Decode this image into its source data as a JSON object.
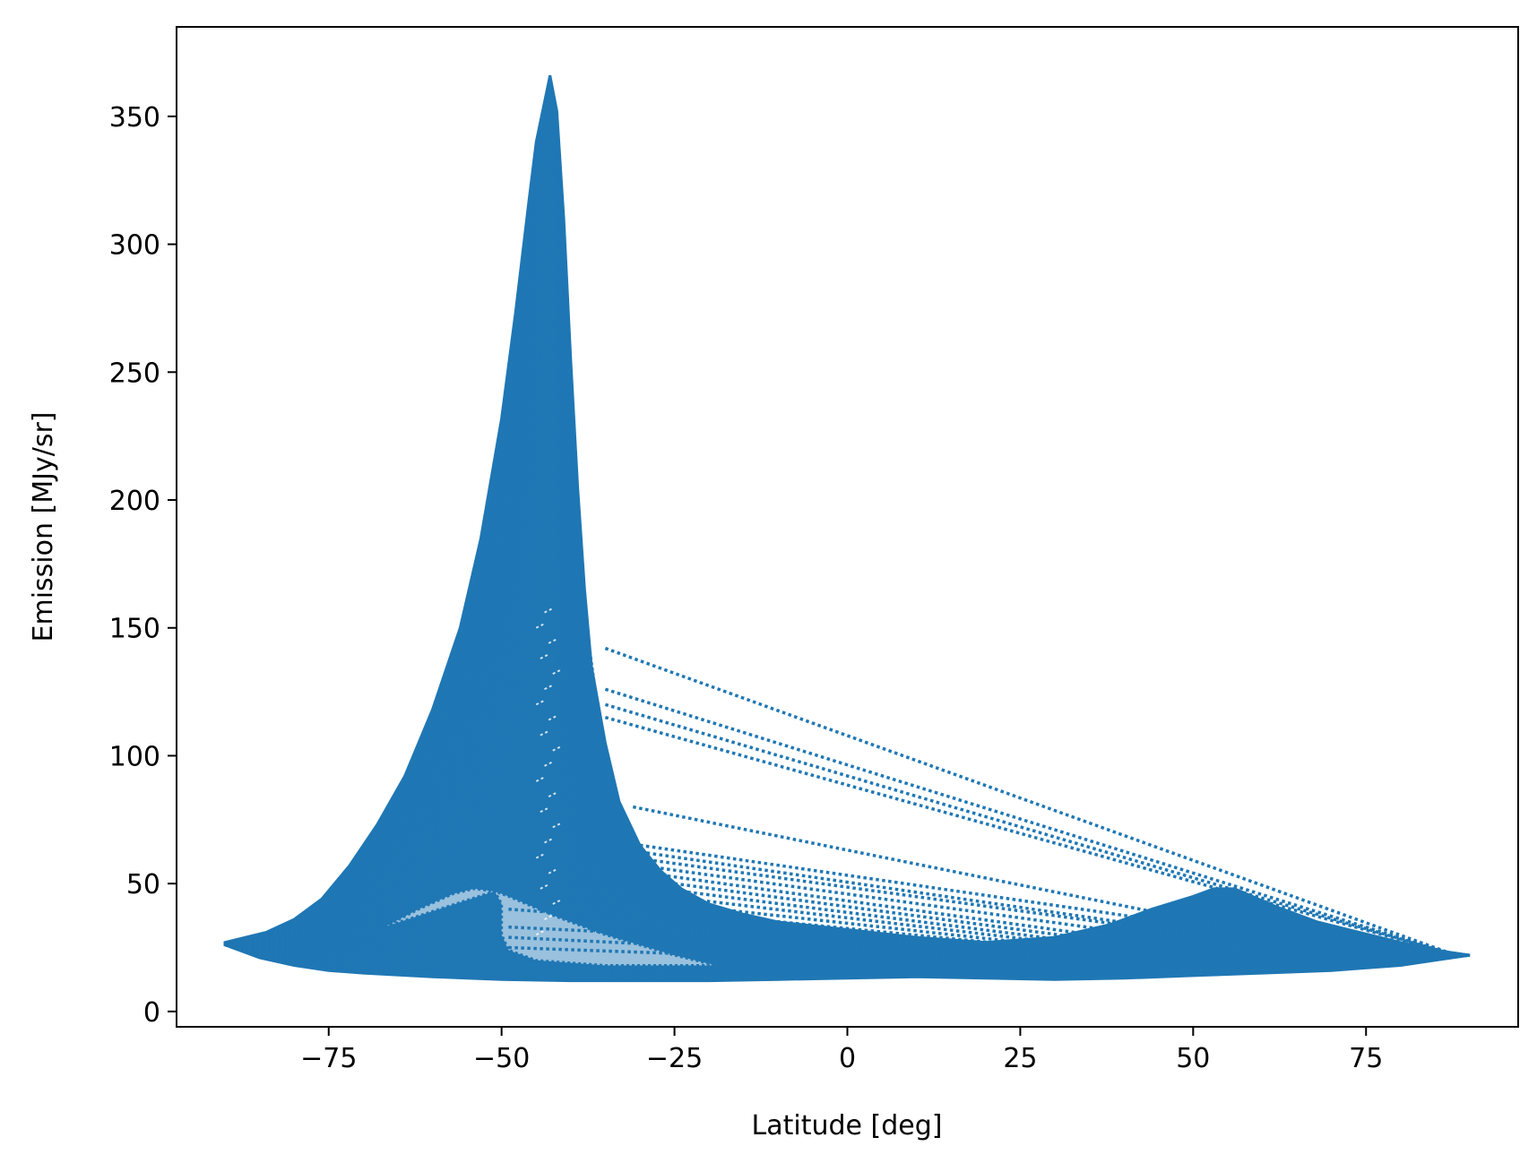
{
  "chart_data": {
    "type": "line",
    "line_style": "dotted",
    "color": "#1f77b4",
    "title": "",
    "xlabel": "Latitude [deg]",
    "ylabel": "Emission [MJy/sr]",
    "xlim": [
      -97,
      97
    ],
    "ylim": [
      -6,
      385
    ],
    "xticks": [
      -75,
      -50,
      -25,
      0,
      25,
      50,
      75
    ],
    "xtick_labels": [
      "−75",
      "−50",
      "−25",
      "0",
      "25",
      "50",
      "75"
    ],
    "yticks": [
      0,
      50,
      100,
      150,
      200,
      250,
      300,
      350
    ],
    "ytick_labels": [
      "0",
      "50",
      "100",
      "150",
      "200",
      "250",
      "300",
      "350"
    ],
    "grid": false,
    "legend": "none",
    "envelope": {
      "upper": [
        [
          -90,
          27
        ],
        [
          -87,
          29
        ],
        [
          -84,
          31
        ],
        [
          -80,
          36
        ],
        [
          -76,
          44
        ],
        [
          -72,
          57
        ],
        [
          -68,
          73
        ],
        [
          -64,
          92
        ],
        [
          -60,
          118
        ],
        [
          -56,
          150
        ],
        [
          -53,
          185
        ],
        [
          -50,
          232
        ],
        [
          -48,
          273
        ],
        [
          -46,
          318
        ],
        [
          -45,
          340
        ],
        [
          -43,
          366
        ],
        [
          -42,
          352
        ],
        [
          -41,
          310
        ],
        [
          -40,
          255
        ],
        [
          -39,
          205
        ],
        [
          -38,
          165
        ],
        [
          -37,
          135
        ],
        [
          -35,
          105
        ],
        [
          -33,
          82
        ],
        [
          -30,
          65
        ],
        [
          -27,
          55
        ],
        [
          -24,
          48
        ],
        [
          -20,
          42
        ],
        [
          -15,
          38
        ],
        [
          -10,
          35
        ],
        [
          0,
          32
        ],
        [
          10,
          29
        ],
        [
          20,
          27
        ],
        [
          30,
          29
        ],
        [
          38,
          34
        ],
        [
          44,
          40
        ],
        [
          50,
          45
        ],
        [
          53,
          48
        ],
        [
          56,
          48
        ],
        [
          62,
          41
        ],
        [
          68,
          35
        ],
        [
          74,
          31
        ],
        [
          80,
          27
        ],
        [
          85,
          24
        ],
        [
          90,
          22
        ]
      ],
      "lower": [
        [
          -90,
          26
        ],
        [
          -85,
          21
        ],
        [
          -80,
          18
        ],
        [
          -75,
          16
        ],
        [
          -70,
          15
        ],
        [
          -60,
          13.5
        ],
        [
          -50,
          12.5
        ],
        [
          -40,
          12
        ],
        [
          -30,
          12
        ],
        [
          -20,
          12
        ],
        [
          -10,
          12.5
        ],
        [
          0,
          13
        ],
        [
          10,
          13.5
        ],
        [
          20,
          13
        ],
        [
          30,
          12.5
        ],
        [
          40,
          13
        ],
        [
          50,
          14
        ],
        [
          60,
          15
        ],
        [
          70,
          16
        ],
        [
          80,
          18
        ],
        [
          85,
          20
        ],
        [
          90,
          22
        ]
      ]
    },
    "inner_loop": [
      [
        -67,
        33
      ],
      [
        -62,
        40
      ],
      [
        -57,
        46
      ],
      [
        -54,
        48
      ],
      [
        -51,
        47
      ],
      [
        -50,
        42
      ],
      [
        -50,
        30
      ],
      [
        -49,
        24
      ],
      [
        -45,
        20
      ],
      [
        -35,
        18
      ],
      [
        -25,
        18
      ],
      [
        -19,
        18
      ],
      [
        -25,
        22
      ],
      [
        -35,
        30
      ],
      [
        -42,
        37
      ],
      [
        -49,
        45
      ],
      [
        -51,
        47
      ]
    ],
    "spur_lines": [
      {
        "x": [
          -35,
          88
        ],
        "y": [
          142,
          22
        ]
      },
      {
        "x": [
          -35,
          88
        ],
        "y": [
          126,
          22
        ]
      },
      {
        "x": [
          -35,
          88
        ],
        "y": [
          120,
          22
        ]
      },
      {
        "x": [
          -35,
          88
        ],
        "y": [
          115,
          22
        ]
      },
      {
        "x": [
          -31,
          46
        ],
        "y": [
          80,
          38
        ]
      },
      {
        "x": [
          -30,
          44
        ],
        "y": [
          65,
          36
        ]
      },
      {
        "x": [
          -29,
          42
        ],
        "y": [
          62,
          34
        ]
      },
      {
        "x": [
          -28,
          42
        ],
        "y": [
          59,
          33
        ]
      },
      {
        "x": [
          -27,
          40
        ],
        "y": [
          56,
          31
        ]
      },
      {
        "x": [
          -26,
          38
        ],
        "y": [
          53,
          29
        ]
      },
      {
        "x": [
          -25,
          36
        ],
        "y": [
          50,
          28
        ]
      },
      {
        "x": [
          -24,
          34
        ],
        "y": [
          47,
          27
        ]
      },
      {
        "x": [
          -23,
          33
        ],
        "y": [
          44,
          26
        ]
      },
      {
        "x": [
          -22,
          32
        ],
        "y": [
          41,
          25
        ]
      },
      {
        "x": [
          -21,
          32
        ],
        "y": [
          38,
          24
        ]
      },
      {
        "x": [
          -49,
          -18
        ],
        "y": [
          40,
          34
        ]
      },
      {
        "x": [
          -49,
          -18
        ],
        "y": [
          33,
          29
        ]
      },
      {
        "x": [
          -49,
          -18
        ],
        "y": [
          29,
          25
        ]
      },
      {
        "x": [
          -49,
          -18
        ],
        "y": [
          25,
          22
        ]
      }
    ]
  }
}
